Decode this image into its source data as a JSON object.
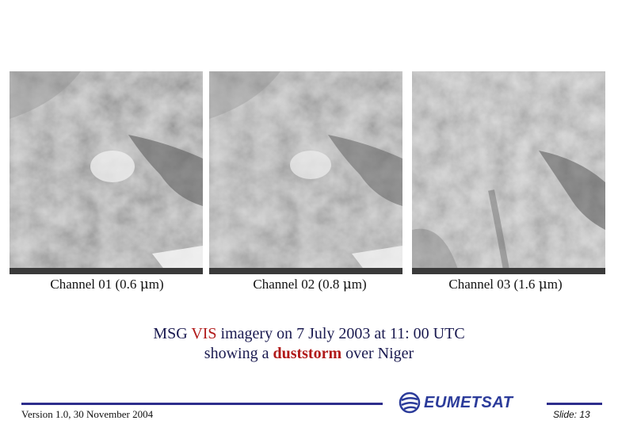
{
  "panels": [
    {
      "caption_prefix": "Channel 01 (0.6 ",
      "unit_mu": "μ",
      "caption_suffix": "m)"
    },
    {
      "caption_prefix": "Channel 02 (0.8 ",
      "unit_mu": "μ",
      "caption_suffix": "m)"
    },
    {
      "caption_prefix": "Channel 03 (1.6 ",
      "unit_mu": "μ",
      "caption_suffix": "m)"
    }
  ],
  "title": {
    "line1_a": "MSG ",
    "line1_vis": "VIS",
    "line1_b": " imagery on 7 July 2003 at 11: 00 UTC",
    "line2_a": "showing a ",
    "line2_dust": "duststorm",
    "line2_b": " over Niger"
  },
  "footer": {
    "version": "Version 1.0, 30 November 2004",
    "org": "EUMETSAT",
    "slide": "Slide: 13"
  },
  "colors": {
    "rule": "#2d2d8c",
    "title_text": "#1a1a50",
    "highlight": "#b11a1a",
    "logo": "#2b3b9a"
  }
}
